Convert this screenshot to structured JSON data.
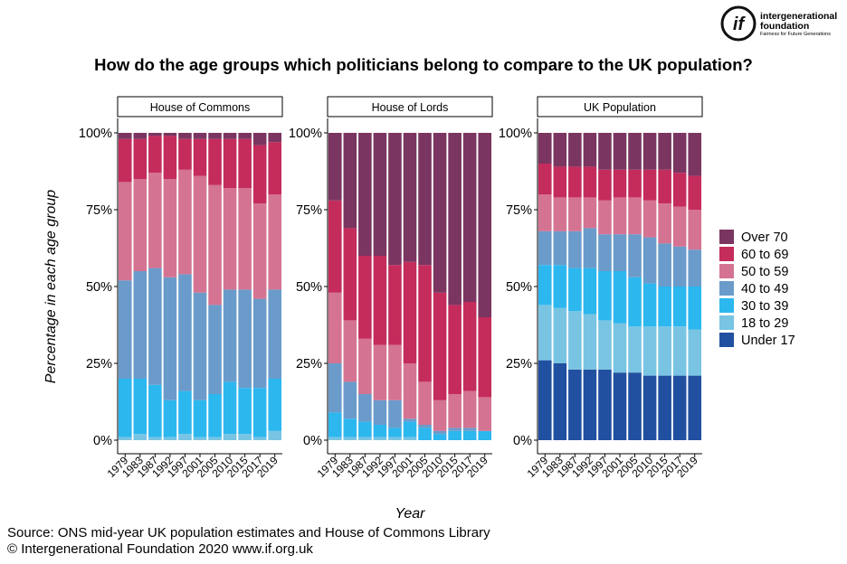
{
  "logo": {
    "mark": "if",
    "org_line1": "intergenerational",
    "org_line2": "foundation",
    "tagline": "Fairness for Future Generations"
  },
  "title": "How do the age groups which politicians belong to compare to the UK population?",
  "source_line1": "Source: ONS mid-year UK population estimates and House of Commons Library",
  "source_line2": "© Intergenerational Foundation 2020 www.if.org.uk",
  "colors": {
    "Over 70": "#7a3560",
    "60 to 69": "#c42c5c",
    "50 to 59": "#d47392",
    "40 to 49": "#6a9bcb",
    "30 to 39": "#2cb7ef",
    "18 to 29": "#79c4e3",
    "Under 17": "#2150a0"
  },
  "chart_data": {
    "type": "bar",
    "stacked": true,
    "ylabel": "Percentage in each age group",
    "xlabel": "Year",
    "ylim": [
      0,
      100
    ],
    "yticks": [
      "0%",
      "25%",
      "50%",
      "75%",
      "100%"
    ],
    "legend_position": "right",
    "legend": [
      "Over 70",
      "60 to 69",
      "50 to 59",
      "40 to 49",
      "30 to 39",
      "18 to 29",
      "Under 17"
    ],
    "categories": [
      "1979",
      "1983",
      "1987",
      "1992",
      "1997",
      "2001",
      "2005",
      "2010",
      "2015",
      "2017",
      "2019"
    ],
    "panels": [
      {
        "title": "House of Commons",
        "series": [
          {
            "name": "Under 17",
            "values": [
              0,
              0,
              0,
              0,
              0,
              0,
              0,
              0,
              0,
              0,
              0
            ]
          },
          {
            "name": "18 to 29",
            "values": [
              1,
              2,
              1,
              1,
              2,
              1,
              1,
              2,
              2,
              1,
              3
            ]
          },
          {
            "name": "30 to 39",
            "values": [
              19,
              18,
              17,
              12,
              14,
              12,
              14,
              17,
              15,
              16,
              17
            ]
          },
          {
            "name": "40 to 49",
            "values": [
              32,
              35,
              38,
              40,
              38,
              35,
              29,
              30,
              32,
              29,
              29
            ]
          },
          {
            "name": "50 to 59",
            "values": [
              32,
              30,
              31,
              32,
              34,
              38,
              39,
              33,
              33,
              31,
              31
            ]
          },
          {
            "name": "60 to 69",
            "values": [
              14,
              13,
              12,
              14,
              10,
              12,
              15,
              16,
              16,
              19,
              17
            ]
          },
          {
            "name": "Over 70",
            "values": [
              2,
              2,
              1,
              1,
              2,
              2,
              2,
              2,
              2,
              4,
              3
            ]
          }
        ]
      },
      {
        "title": "House of Lords",
        "series": [
          {
            "name": "Under 17",
            "values": [
              0,
              0,
              0,
              0,
              0,
              0,
              0,
              0,
              0,
              0,
              0
            ]
          },
          {
            "name": "18 to 29",
            "values": [
              1,
              1,
              1,
              1,
              1,
              1,
              0,
              0,
              0,
              0,
              0
            ]
          },
          {
            "name": "30 to 39",
            "values": [
              8,
              6,
              5,
              4,
              3,
              5,
              4,
              2,
              3,
              3,
              3
            ]
          },
          {
            "name": "40 to 49",
            "values": [
              16,
              12,
              9,
              8,
              9,
              1,
              1,
              1,
              1,
              1,
              0
            ]
          },
          {
            "name": "50 to 59",
            "values": [
              23,
              20,
              18,
              18,
              18,
              18,
              14,
              10,
              11,
              12,
              11
            ]
          },
          {
            "name": "60 to 69",
            "values": [
              30,
              30,
              27,
              29,
              26,
              33,
              38,
              35,
              29,
              29,
              26
            ]
          },
          {
            "name": "Over 70",
            "values": [
              22,
              31,
              40,
              40,
              43,
              42,
              43,
              52,
              56,
              55,
              60
            ]
          }
        ]
      },
      {
        "title": "UK Population",
        "series": [
          {
            "name": "Under 17",
            "values": [
              26,
              25,
              23,
              23,
              23,
              22,
              22,
              21,
              21,
              21,
              21
            ]
          },
          {
            "name": "18 to 29",
            "values": [
              18,
              18,
              19,
              18,
              16,
              16,
              15,
              16,
              16,
              16,
              15
            ]
          },
          {
            "name": "30 to 39",
            "values": [
              13,
              14,
              14,
              15,
              16,
              17,
              16,
              14,
              13,
              13,
              14
            ]
          },
          {
            "name": "40 to 49",
            "values": [
              11,
              11,
              12,
              13,
              12,
              12,
              14,
              15,
              14,
              13,
              12
            ]
          },
          {
            "name": "50 to 59",
            "values": [
              12,
              11,
              11,
              10,
              11,
              12,
              12,
              12,
              13,
              13,
              13
            ]
          },
          {
            "name": "60 to 69",
            "values": [
              10,
              10,
              10,
              10,
              10,
              9,
              9,
              10,
              11,
              11,
              11
            ]
          },
          {
            "name": "Over 70",
            "values": [
              10,
              11,
              11,
              11,
              12,
              12,
              12,
              12,
              12,
              13,
              14
            ]
          }
        ]
      }
    ]
  }
}
